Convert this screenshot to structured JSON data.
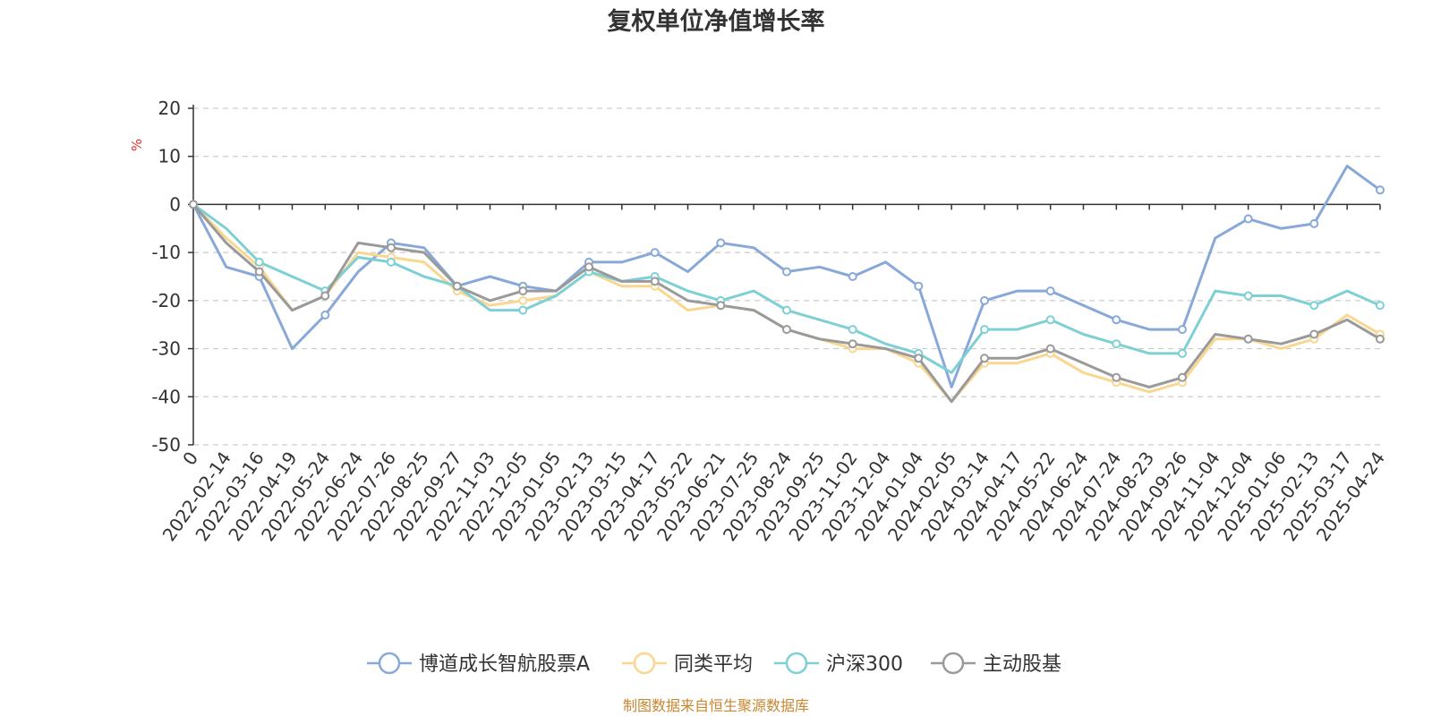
{
  "chart_data": {
    "type": "line",
    "title": "复权单位净值增长率",
    "ylabel": "%",
    "ylim": [
      -50,
      20
    ],
    "yticks": [
      20,
      10,
      0,
      -10,
      -20,
      -30,
      -40,
      -50
    ],
    "grid": true,
    "legend_position": "bottom",
    "source": "制图数据来自恒生聚源数据库",
    "x": [
      "0",
      "2022-02-14",
      "2022-03-16",
      "2022-04-19",
      "2022-05-24",
      "2022-06-24",
      "2022-07-26",
      "2022-08-25",
      "2022-09-27",
      "2022-11-03",
      "2022-12-05",
      "2023-01-05",
      "2023-02-13",
      "2023-03-15",
      "2023-04-17",
      "2023-05-22",
      "2023-06-21",
      "2023-07-25",
      "2023-08-24",
      "2023-09-25",
      "2023-11-02",
      "2023-12-04",
      "2024-01-04",
      "2024-02-05",
      "2024-03-14",
      "2024-04-17",
      "2024-05-22",
      "2024-06-24",
      "2024-07-24",
      "2024-08-23",
      "2024-09-26",
      "2024-11-04",
      "2024-12-04",
      "2025-01-06",
      "2025-02-13",
      "2025-03-17",
      "2025-04-24"
    ],
    "series": [
      {
        "name": "博道成长智航股票A",
        "color": "#88a9d8",
        "values": [
          0,
          -13,
          -15,
          -30,
          -23,
          -14,
          -8,
          -9,
          -17,
          -15,
          -17,
          -18,
          -12,
          -12,
          -10,
          -14,
          -8,
          -9,
          -14,
          -13,
          -15,
          -12,
          -17,
          -38,
          -20,
          -18,
          -18,
          -21,
          -24,
          -26,
          -26,
          -7,
          -3,
          -5,
          -4,
          8,
          3
        ]
      },
      {
        "name": "同类平均",
        "color": "#fad790",
        "values": [
          0,
          -7,
          -13,
          -22,
          -19,
          -10,
          -11,
          -12,
          -18,
          -21,
          -20,
          -19,
          -14,
          -17,
          -17,
          -22,
          -21,
          -22,
          -26,
          -28,
          -30,
          -30,
          -33,
          -41,
          -33,
          -33,
          -31,
          -35,
          -37,
          -39,
          -37,
          -28,
          -28,
          -30,
          -28,
          -23,
          -27
        ]
      },
      {
        "name": "沪深300",
        "color": "#7ed0d4",
        "values": [
          0,
          -5,
          -12,
          -15,
          -18,
          -11,
          -12,
          -15,
          -17,
          -22,
          -22,
          -19,
          -14,
          -16,
          -15,
          -18,
          -20,
          -18,
          -22,
          -24,
          -26,
          -29,
          -31,
          -35,
          -26,
          -26,
          -24,
          -27,
          -29,
          -31,
          -31,
          -18,
          -19,
          -19,
          -21,
          -18,
          -21
        ]
      },
      {
        "name": "主动股基",
        "color": "#9a9a9a",
        "values": [
          0,
          -8,
          -14,
          -22,
          -19,
          -8,
          -9,
          -10,
          -17,
          -20,
          -18,
          -18,
          -13,
          -16,
          -16,
          -20,
          -21,
          -22,
          -26,
          -28,
          -29,
          -30,
          -32,
          -41,
          -32,
          -32,
          -30,
          -33,
          -36,
          -38,
          -36,
          -27,
          -28,
          -29,
          -27,
          -24,
          -28
        ]
      }
    ]
  }
}
